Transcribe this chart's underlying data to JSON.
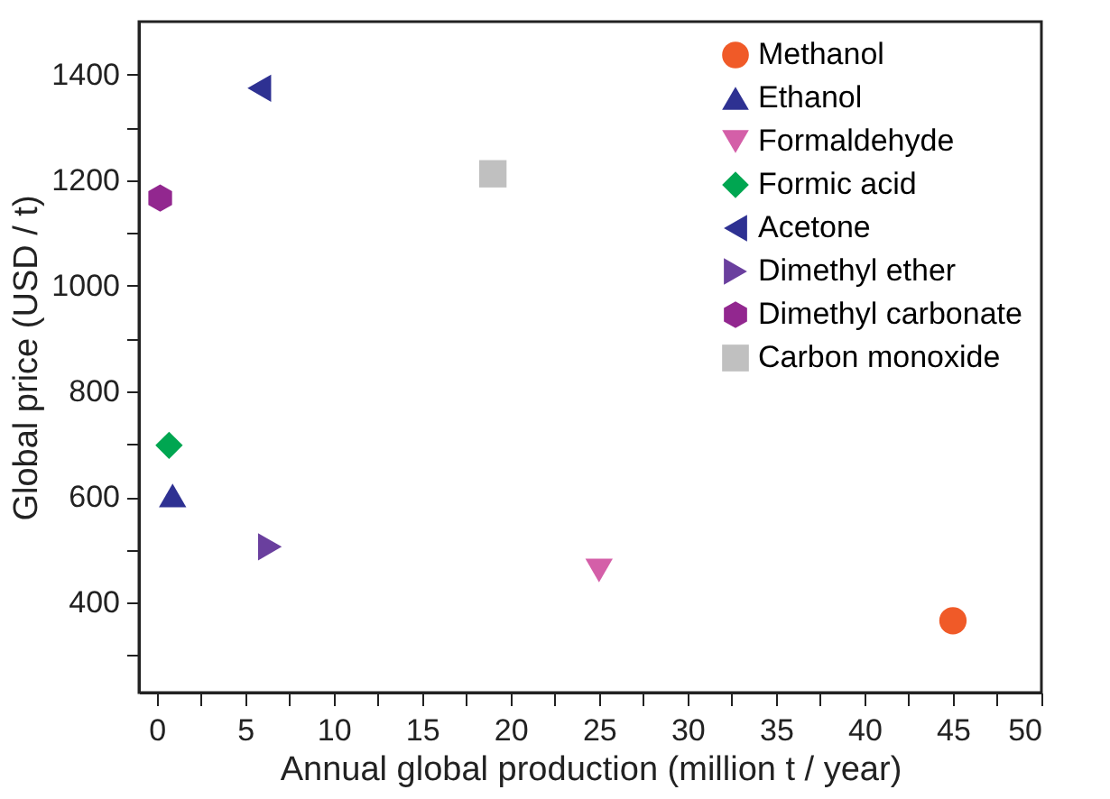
{
  "chart_data": {
    "type": "scatter",
    "xlabel": "Annual global production (million t / year)",
    "ylabel": "Global price (USD / t)",
    "xlim": [
      -1,
      50
    ],
    "ylim": [
      230,
      1500
    ],
    "xticks": [
      0,
      {
        "value": 2.5,
        "label": null
      },
      5,
      {
        "value": 7.5,
        "label": null
      },
      10,
      {
        "value": 12.5,
        "label": null
      },
      15,
      {
        "value": 17.5,
        "label": null
      },
      20,
      {
        "value": 22.5,
        "label": null
      },
      25,
      {
        "value": 27.5,
        "label": null
      },
      30,
      {
        "value": 32.5,
        "label": null
      },
      35,
      {
        "value": 37.5,
        "label": null
      },
      40,
      {
        "value": 42.5,
        "label": null
      },
      45,
      {
        "value": 47.5,
        "label": null
      },
      50
    ],
    "yticks": [
      {
        "value": 300,
        "label": null
      },
      400,
      {
        "value": 500,
        "label": null
      },
      600,
      {
        "value": 700,
        "label": null
      },
      800,
      {
        "value": 900,
        "label": null
      },
      1000,
      {
        "value": 1100,
        "label": null
      },
      1200,
      {
        "value": 1300,
        "label": null
      },
      1400
    ],
    "grid": false,
    "legend": "top right",
    "series": [
      {
        "name": "Methanol",
        "color": "#f05a28",
        "marker": "circle",
        "x": [
          45.0
        ],
        "values": [
          366
        ]
      },
      {
        "name": "Ethanol",
        "color": "#2e3192",
        "marker": "triangle",
        "x": [
          0.9
        ],
        "values": [
          603
        ]
      },
      {
        "name": "Formaldehyde",
        "color": "#d45fa8",
        "marker": "triangle-down",
        "x": [
          25.0
        ],
        "values": [
          461
        ]
      },
      {
        "name": "Formic acid",
        "color": "#00a651",
        "marker": "diamond",
        "x": [
          0.7
        ],
        "values": [
          698
        ]
      },
      {
        "name": "Acetone",
        "color": "#2e3192",
        "marker": "triangle-left",
        "x": [
          5.8
        ],
        "values": [
          1374
        ]
      },
      {
        "name": "Dimethyl ether",
        "color": "#6a3f9e",
        "marker": "triangle-right",
        "x": [
          6.4
        ],
        "values": [
          506
        ]
      },
      {
        "name": "Dimethyl carbonate",
        "color": "#92278f",
        "x": [
          0.2
        ],
        "values": [
          1166
        ]
      },
      {
        "name": "Carbon monoxide",
        "color": "#c0c0c0",
        "marker": "square",
        "x": [
          19.0
        ],
        "values": [
          1212
        ]
      }
    ]
  }
}
